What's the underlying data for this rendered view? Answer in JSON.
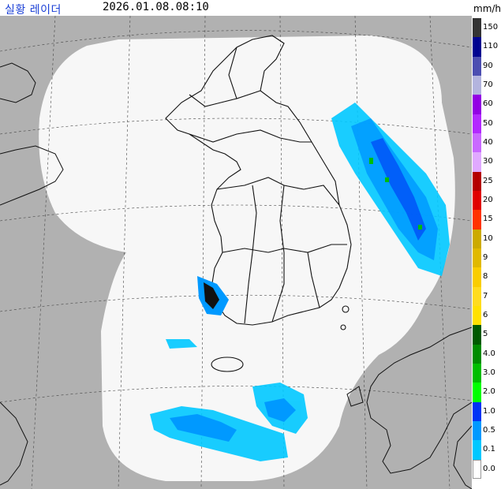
{
  "header": {
    "title": "실황 레이더",
    "timestamp": "2026.01.08.08:10",
    "unit": "mm/h"
  },
  "legend": [
    {
      "label": "150",
      "color": "#333333"
    },
    {
      "label": "110",
      "color": "#000390"
    },
    {
      "label": "90",
      "color": "#4c4eb1"
    },
    {
      "label": "70",
      "color": "#b3b4de"
    },
    {
      "label": "60",
      "color": "#9300e4"
    },
    {
      "label": "50",
      "color": "#b329ff"
    },
    {
      "label": "40",
      "color": "#c969ff"
    },
    {
      "label": "30",
      "color": "#e0a9ff"
    },
    {
      "label": "25",
      "color": "#b40000"
    },
    {
      "label": "20",
      "color": "#e00000"
    },
    {
      "label": "15",
      "color": "#ff3300"
    },
    {
      "label": "10",
      "color": "#ccaa00"
    },
    {
      "label": "9",
      "color": "#e0b900"
    },
    {
      "label": "8",
      "color": "#f9cd00"
    },
    {
      "label": "7",
      "color": "#ffdc1f"
    },
    {
      "label": "6",
      "color": "#ffe100"
    },
    {
      "label": "5",
      "color": "#005a00"
    },
    {
      "label": "4.0",
      "color": "#008c00"
    },
    {
      "label": "3.0",
      "color": "#00be00"
    },
    {
      "label": "2.0",
      "color": "#00ff00"
    },
    {
      "label": "1.0",
      "color": "#0033f5"
    },
    {
      "label": "0.5",
      "color": "#0099ff"
    },
    {
      "label": "0.1",
      "color": "#00c8ff"
    },
    {
      "label": "0.0",
      "color": "#ffffff"
    }
  ],
  "map": {
    "outside_color": "#b1b1b1",
    "coverage_color": "#f7f7f7"
  }
}
